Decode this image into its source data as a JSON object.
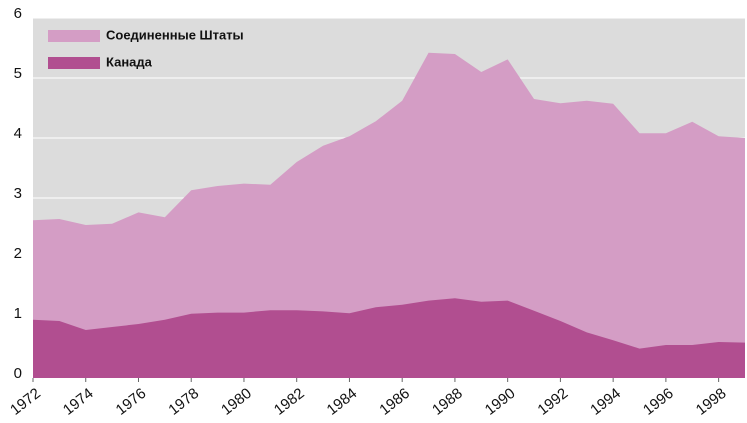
{
  "chart_data": {
    "type": "area",
    "x": [
      1972,
      1973,
      1974,
      1975,
      1976,
      1977,
      1978,
      1979,
      1980,
      1981,
      1982,
      1983,
      1984,
      1985,
      1986,
      1987,
      1988,
      1989,
      1990,
      1991,
      1992,
      1993,
      1994,
      1995,
      1996,
      1997,
      1998,
      1999
    ],
    "series": [
      {
        "name": "Соединенные Штаты",
        "color": "#d49dc5",
        "values": [
          2.63,
          2.65,
          2.55,
          2.57,
          2.76,
          2.68,
          3.13,
          3.2,
          3.24,
          3.22,
          3.6,
          3.87,
          4.03,
          4.28,
          4.62,
          5.42,
          5.4,
          5.1,
          5.31,
          4.65,
          4.58,
          4.62,
          4.57,
          4.08,
          4.08,
          4.27,
          4.03,
          4.0
        ]
      },
      {
        "name": "Канада",
        "color": "#b14e90",
        "values": [
          0.97,
          0.95,
          0.8,
          0.85,
          0.9,
          0.97,
          1.07,
          1.09,
          1.09,
          1.13,
          1.13,
          1.11,
          1.08,
          1.18,
          1.22,
          1.29,
          1.33,
          1.27,
          1.29,
          1.12,
          0.95,
          0.76,
          0.63,
          0.49,
          0.55,
          0.55,
          0.6,
          0.59
        ]
      }
    ],
    "xlim": [
      1972,
      1999
    ],
    "xticks": [
      1972,
      1974,
      1976,
      1978,
      1980,
      1982,
      1984,
      1986,
      1988,
      1990,
      1992,
      1994,
      1996,
      1998
    ],
    "ylim": [
      0,
      6
    ],
    "yticks": [
      0,
      1,
      2,
      3,
      4,
      5,
      6
    ],
    "grid": true
  }
}
